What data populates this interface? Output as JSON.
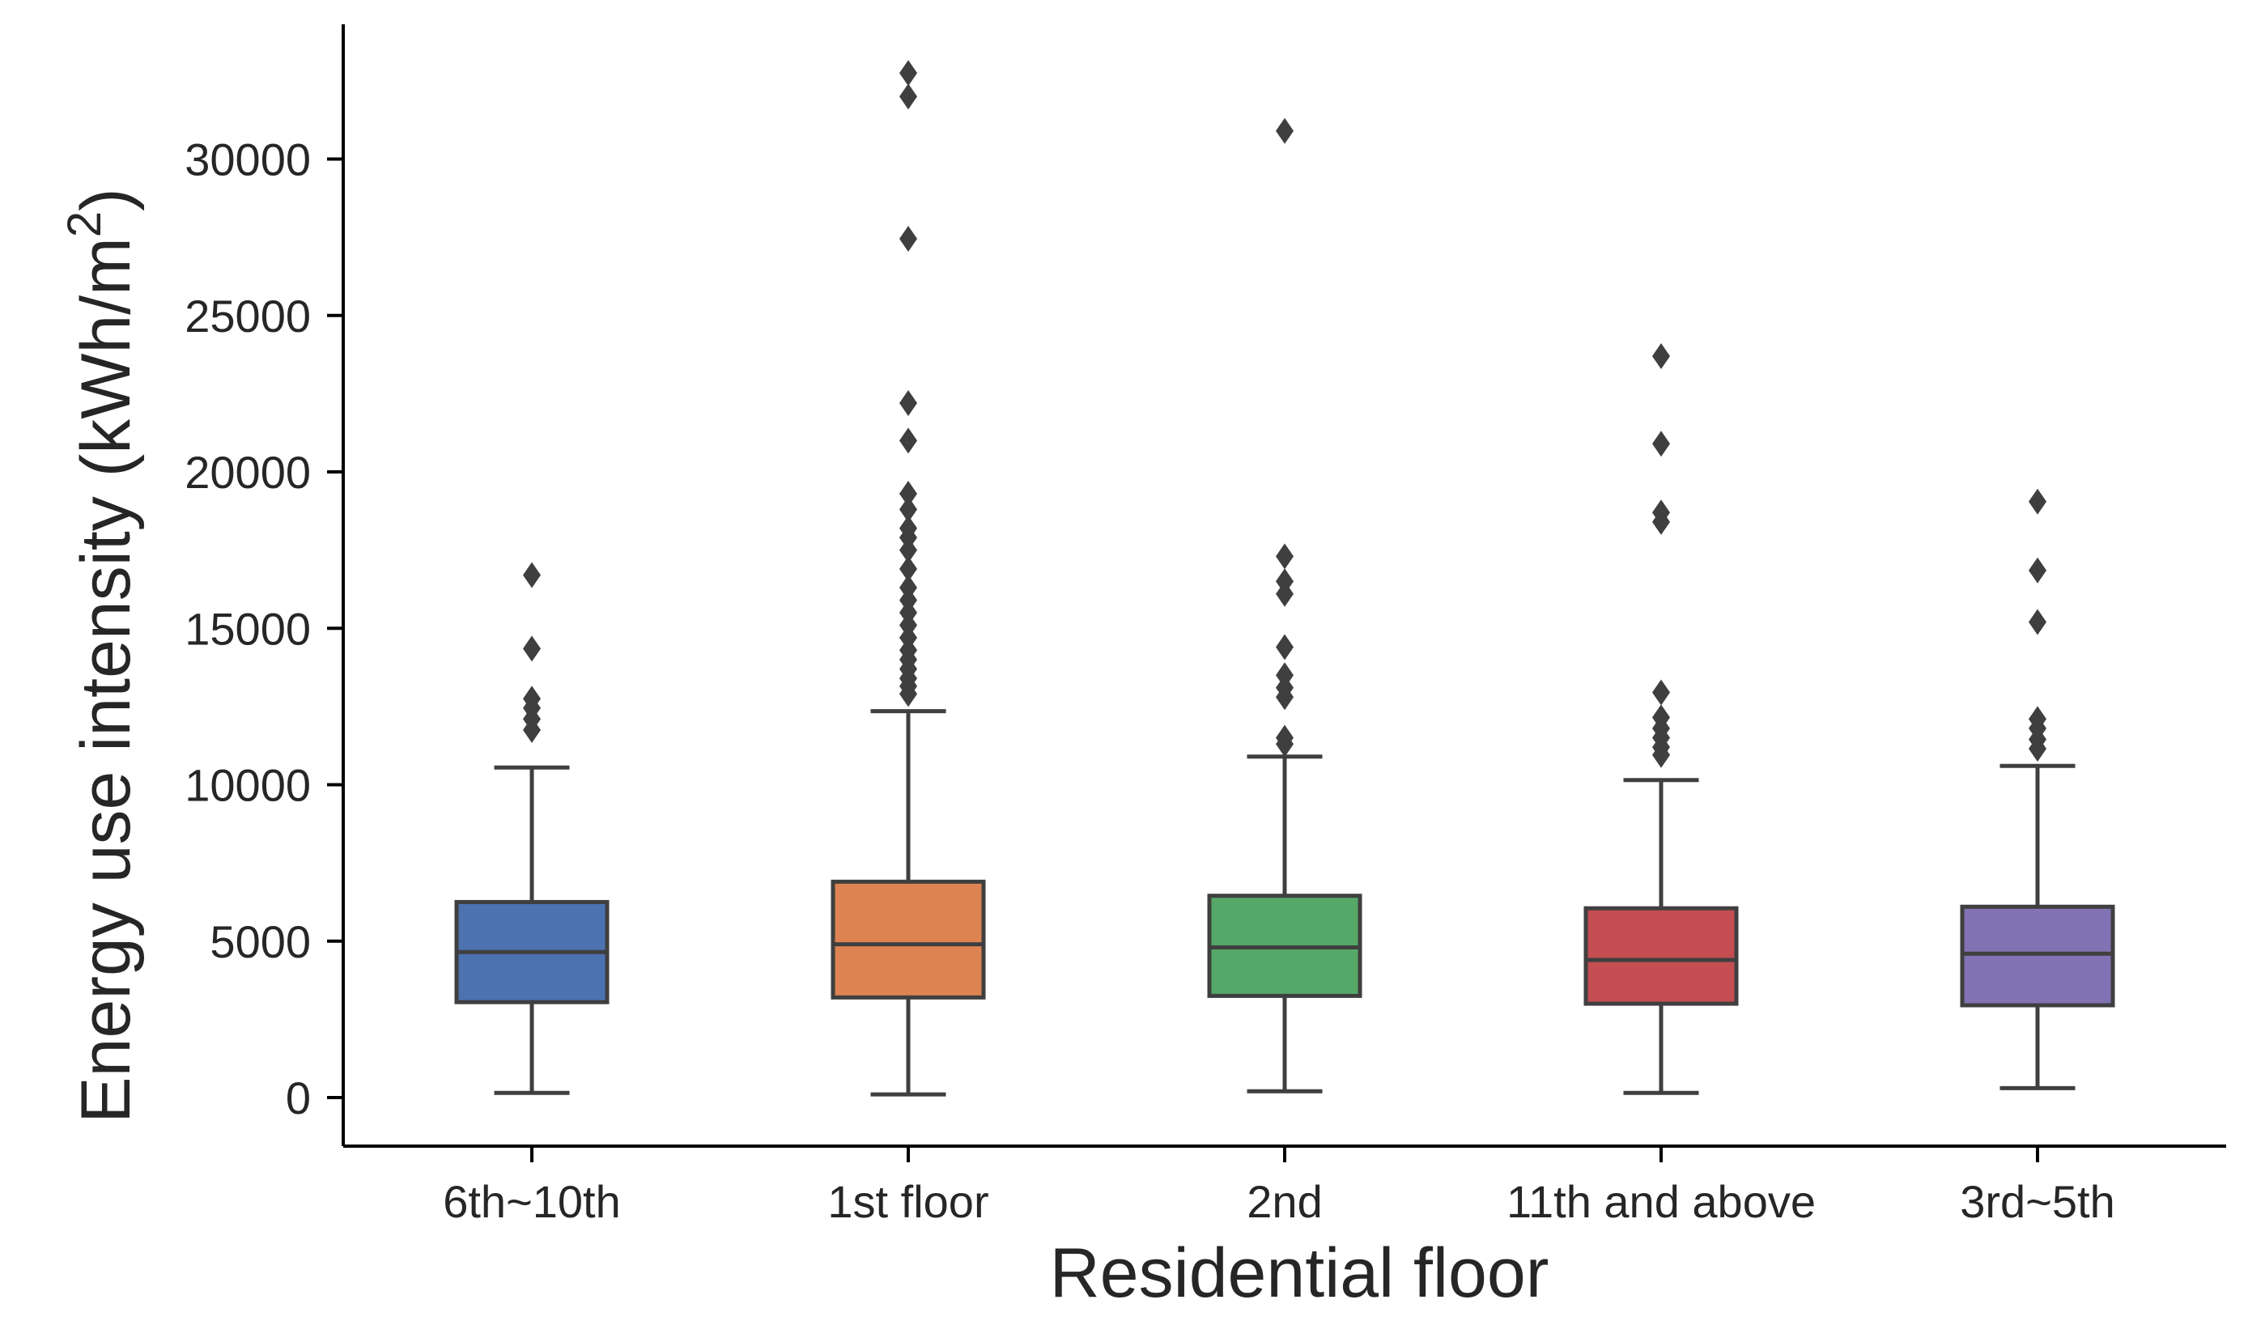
{
  "chart_data": {
    "type": "box",
    "title": "",
    "xlabel": "Residential floor",
    "ylabel": {
      "main": "Energy use intensity (kWh/m",
      "superscript": "2",
      "close": ")"
    },
    "ylim": [
      -1600,
      34400
    ],
    "yticks": [
      0,
      5000,
      10000,
      15000,
      20000,
      25000,
      30000
    ],
    "ytick_labels": [
      "0",
      "5000",
      "10000",
      "15000",
      "20000",
      "25000",
      "30000"
    ],
    "grid": false,
    "categories": [
      "6th~10th",
      "1st floor",
      "2nd",
      "11th and above",
      "3rd~5th"
    ],
    "boxes": [
      {
        "category": "6th~10th",
        "color": "#4c72b0",
        "whisker_low": 150,
        "q1": 3050,
        "median": 4650,
        "q3": 6250,
        "whisker_high": 10550,
        "outliers": [
          11750,
          12100,
          12450,
          12750,
          14350,
          16700
        ]
      },
      {
        "category": "1st floor",
        "color": "#dd8452",
        "whisker_low": 100,
        "q1": 3200,
        "median": 4900,
        "q3": 6900,
        "whisker_high": 12350,
        "outliers": [
          12900,
          13150,
          13400,
          13700,
          14000,
          14300,
          14700,
          15100,
          15500,
          15900,
          16300,
          16900,
          17500,
          17900,
          18200,
          18800,
          19300,
          21000,
          22200,
          27450,
          32000,
          32750
        ]
      },
      {
        "category": "2nd",
        "color": "#55a868",
        "whisker_low": 200,
        "q1": 3250,
        "median": 4800,
        "q3": 6450,
        "whisker_high": 10900,
        "outliers": [
          11300,
          11500,
          12800,
          13100,
          13500,
          14400,
          16100,
          16500,
          17300,
          30900
        ]
      },
      {
        "category": "11th and above",
        "color": "#c44e52",
        "whisker_low": 150,
        "q1": 3000,
        "median": 4400,
        "q3": 6050,
        "whisker_high": 10150,
        "outliers": [
          10950,
          11200,
          11500,
          11800,
          12150,
          12950,
          18400,
          18700,
          20900,
          23700
        ]
      },
      {
        "category": "3rd~5th",
        "color": "#8172b3",
        "whisker_low": 300,
        "q1": 2950,
        "median": 4600,
        "q3": 6100,
        "whisker_high": 10600,
        "outliers": [
          11150,
          11450,
          11800,
          12100,
          15200,
          16850,
          19050
        ]
      }
    ]
  }
}
